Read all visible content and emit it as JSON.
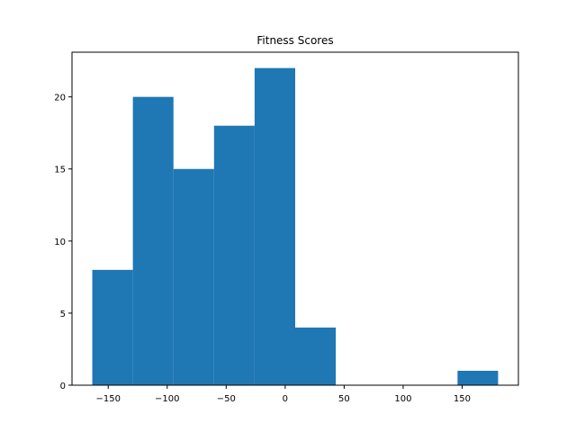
{
  "chart_data": {
    "type": "bar",
    "title": "Fitness Scores",
    "xlabel": "",
    "ylabel": "",
    "bins": [
      {
        "x0": -163.5,
        "x1": -129.1,
        "count": 8
      },
      {
        "x0": -129.1,
        "x1": -94.7,
        "count": 20
      },
      {
        "x0": -94.7,
        "x1": -60.3,
        "count": 15
      },
      {
        "x0": -60.3,
        "x1": -25.9,
        "count": 18
      },
      {
        "x0": -25.9,
        "x1": 8.5,
        "count": 22
      },
      {
        "x0": 8.5,
        "x1": 42.9,
        "count": 4
      },
      {
        "x0": 42.9,
        "x1": 77.3,
        "count": 0
      },
      {
        "x0": 77.3,
        "x1": 111.7,
        "count": 0
      },
      {
        "x0": 111.7,
        "x1": 146.1,
        "count": 0
      },
      {
        "x0": 146.1,
        "x1": 180.5,
        "count": 1
      }
    ],
    "xlim": [
      -180.7,
      197.7
    ],
    "ylim": [
      0,
      23.1
    ],
    "xticks": [
      -150,
      -100,
      -50,
      0,
      50,
      100,
      150
    ],
    "xtick_labels": [
      "−150",
      "−100",
      "−50",
      "0",
      "50",
      "100",
      "150"
    ],
    "yticks": [
      0,
      5,
      10,
      15,
      20
    ],
    "ytick_labels": [
      "0",
      "5",
      "10",
      "15",
      "20"
    ],
    "bar_color": "#1f77b4",
    "grid": false
  }
}
